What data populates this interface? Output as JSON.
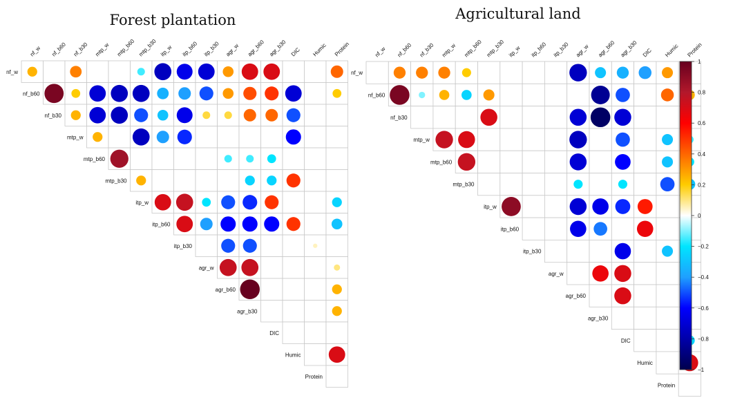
{
  "chart_data": [
    {
      "type": "heatmap",
      "title": "Forest plantation",
      "variables": [
        "nf_w",
        "nf_b60",
        "nf_b30",
        "mtp_w",
        "mtp_b60",
        "mtp_b30",
        "itp_w",
        "itp_b60",
        "itp_b30",
        "agr_w",
        "agr_b60",
        "agr_b30",
        "DIC",
        "Humic",
        "Protein"
      ],
      "cells": [
        {
          "row": "nf_w",
          "col": "nf_w",
          "value": 0.25
        },
        {
          "row": "nf_w",
          "col": "nf_b30",
          "value": 0.35
        },
        {
          "row": "nf_w",
          "col": "mtp_b30",
          "value": -0.15
        },
        {
          "row": "nf_w",
          "col": "itp_w",
          "value": -0.75
        },
        {
          "row": "nf_w",
          "col": "itp_b60",
          "value": -0.65
        },
        {
          "row": "nf_w",
          "col": "itp_b30",
          "value": -0.7
        },
        {
          "row": "nf_w",
          "col": "agr_w",
          "value": 0.3
        },
        {
          "row": "nf_w",
          "col": "agr_b60",
          "value": 0.7
        },
        {
          "row": "nf_w",
          "col": "agr_b30",
          "value": 0.7
        },
        {
          "row": "nf_w",
          "col": "Protein",
          "value": 0.4
        },
        {
          "row": "nf_b60",
          "col": "nf_b60",
          "value": 0.95
        },
        {
          "row": "nf_b60",
          "col": "nf_b30",
          "value": 0.2
        },
        {
          "row": "nf_b60",
          "col": "mtp_w",
          "value": -0.7
        },
        {
          "row": "nf_b60",
          "col": "mtp_b60",
          "value": -0.75
        },
        {
          "row": "nf_b60",
          "col": "mtp_b30",
          "value": -0.75
        },
        {
          "row": "nf_b60",
          "col": "itp_w",
          "value": -0.35
        },
        {
          "row": "nf_b60",
          "col": "itp_b60",
          "value": -0.4
        },
        {
          "row": "nf_b60",
          "col": "itp_b30",
          "value": -0.5
        },
        {
          "row": "nf_b60",
          "col": "agr_w",
          "value": 0.3
        },
        {
          "row": "nf_b60",
          "col": "agr_b60",
          "value": 0.45
        },
        {
          "row": "nf_b60",
          "col": "agr_b30",
          "value": 0.5
        },
        {
          "row": "nf_b60",
          "col": "DIC",
          "value": -0.7
        },
        {
          "row": "nf_b60",
          "col": "Protein",
          "value": 0.2
        },
        {
          "row": "nf_b30",
          "col": "nf_b30",
          "value": 0.25
        },
        {
          "row": "nf_b30",
          "col": "mtp_w",
          "value": -0.7
        },
        {
          "row": "nf_b30",
          "col": "mtp_b60",
          "value": -0.75
        },
        {
          "row": "nf_b30",
          "col": "mtp_b30",
          "value": -0.5
        },
        {
          "row": "nf_b30",
          "col": "itp_w",
          "value": -0.3
        },
        {
          "row": "nf_b30",
          "col": "itp_b60",
          "value": -0.65
        },
        {
          "row": "nf_b30",
          "col": "itp_b30",
          "value": 0.15
        },
        {
          "row": "nf_b30",
          "col": "agr_w",
          "value": 0.15
        },
        {
          "row": "nf_b30",
          "col": "agr_b60",
          "value": 0.4
        },
        {
          "row": "nf_b30",
          "col": "agr_b30",
          "value": 0.4
        },
        {
          "row": "nf_b30",
          "col": "DIC",
          "value": -0.5
        },
        {
          "row": "mtp_w",
          "col": "mtp_w",
          "value": 0.25
        },
        {
          "row": "mtp_w",
          "col": "mtp_b30",
          "value": -0.75
        },
        {
          "row": "mtp_w",
          "col": "itp_w",
          "value": -0.4
        },
        {
          "row": "mtp_w",
          "col": "itp_b60",
          "value": -0.55
        },
        {
          "row": "mtp_w",
          "col": "DIC",
          "value": -0.6
        },
        {
          "row": "mtp_b60",
          "col": "mtp_b60",
          "value": 0.85
        },
        {
          "row": "mtp_b60",
          "col": "agr_w",
          "value": -0.15
        },
        {
          "row": "mtp_b60",
          "col": "agr_b60",
          "value": -0.15
        },
        {
          "row": "mtp_b60",
          "col": "agr_b30",
          "value": -0.2
        },
        {
          "row": "mtp_b30",
          "col": "mtp_b30",
          "value": 0.25
        },
        {
          "row": "mtp_b30",
          "col": "agr_b60",
          "value": -0.25
        },
        {
          "row": "mtp_b30",
          "col": "agr_b30",
          "value": -0.25
        },
        {
          "row": "mtp_b30",
          "col": "DIC",
          "value": 0.5
        },
        {
          "row": "itp_w",
          "col": "itp_w",
          "value": 0.7
        },
        {
          "row": "itp_w",
          "col": "itp_b60",
          "value": 0.75
        },
        {
          "row": "itp_w",
          "col": "itp_b30",
          "value": -0.2
        },
        {
          "row": "itp_w",
          "col": "agr_w",
          "value": -0.5
        },
        {
          "row": "itp_w",
          "col": "agr_b60",
          "value": -0.55
        },
        {
          "row": "itp_w",
          "col": "agr_b30",
          "value": 0.5
        },
        {
          "row": "itp_w",
          "col": "Protein",
          "value": -0.25
        },
        {
          "row": "itp_b60",
          "col": "itp_b60",
          "value": 0.7
        },
        {
          "row": "itp_b60",
          "col": "itp_b30",
          "value": -0.4
        },
        {
          "row": "itp_b60",
          "col": "agr_w",
          "value": -0.6
        },
        {
          "row": "itp_b60",
          "col": "agr_b60",
          "value": -0.6
        },
        {
          "row": "itp_b60",
          "col": "agr_b30",
          "value": -0.6
        },
        {
          "row": "itp_b60",
          "col": "DIC",
          "value": 0.5
        },
        {
          "row": "itp_b60",
          "col": "Protein",
          "value": -0.3
        },
        {
          "row": "itp_b30",
          "col": "agr_w",
          "value": -0.5
        },
        {
          "row": "itp_b30",
          "col": "agr_b60",
          "value": -0.5
        },
        {
          "row": "itp_b30",
          "col": "Humic",
          "value": 0.05
        },
        {
          "row": "agr_w",
          "col": "agr_w",
          "value": 0.75
        },
        {
          "row": "agr_w",
          "col": "agr_b60",
          "value": 0.75
        },
        {
          "row": "agr_w",
          "col": "Protein",
          "value": 0.1
        },
        {
          "row": "agr_b60",
          "col": "agr_b60",
          "value": 1.0
        },
        {
          "row": "agr_b60",
          "col": "Protein",
          "value": 0.25
        },
        {
          "row": "agr_b30",
          "col": "Protein",
          "value": 0.25
        },
        {
          "row": "Humic",
          "col": "Protein",
          "value": 0.7
        }
      ]
    },
    {
      "type": "heatmap",
      "title": "Agricultural land",
      "variables": [
        "nf_w",
        "nf_b60",
        "nf_b30",
        "mtp_w",
        "mtp_b60",
        "mtp_b30",
        "itp_w",
        "itp_b60",
        "itp_b30",
        "agr_w",
        "agr_b60",
        "agr_b30",
        "DIC",
        "Humic",
        "Protein"
      ],
      "cells": [
        {
          "row": "nf_w",
          "col": "nf_b60",
          "value": 0.35
        },
        {
          "row": "nf_w",
          "col": "nf_b30",
          "value": 0.35
        },
        {
          "row": "nf_w",
          "col": "mtp_w",
          "value": 0.35
        },
        {
          "row": "nf_w",
          "col": "mtp_b60",
          "value": 0.2
        },
        {
          "row": "nf_w",
          "col": "agr_w",
          "value": -0.75
        },
        {
          "row": "nf_w",
          "col": "agr_b60",
          "value": -0.3
        },
        {
          "row": "nf_w",
          "col": "agr_b30",
          "value": -0.35
        },
        {
          "row": "nf_w",
          "col": "DIC",
          "value": -0.4
        },
        {
          "row": "nf_w",
          "col": "Humic",
          "value": 0.3
        },
        {
          "row": "nf_b60",
          "col": "nf_b60",
          "value": 0.95
        },
        {
          "row": "nf_b60",
          "col": "nf_b30",
          "value": -0.1
        },
        {
          "row": "nf_b60",
          "col": "mtp_w",
          "value": 0.25
        },
        {
          "row": "nf_b60",
          "col": "mtp_b60",
          "value": -0.25
        },
        {
          "row": "nf_b60",
          "col": "mtp_b30",
          "value": 0.3
        },
        {
          "row": "nf_b60",
          "col": "agr_b60",
          "value": -0.85
        },
        {
          "row": "nf_b60",
          "col": "agr_b30",
          "value": -0.5
        },
        {
          "row": "nf_b60",
          "col": "Humic",
          "value": 0.4
        },
        {
          "row": "nf_b60",
          "col": "Protein",
          "value": 0.25
        },
        {
          "row": "nf_b30",
          "col": "mtp_b30",
          "value": 0.7
        },
        {
          "row": "nf_b30",
          "col": "agr_w",
          "value": -0.7
        },
        {
          "row": "nf_b30",
          "col": "agr_b60",
          "value": -0.95
        },
        {
          "row": "nf_b30",
          "col": "agr_b30",
          "value": -0.7
        },
        {
          "row": "mtp_w",
          "col": "mtp_w",
          "value": 0.75
        },
        {
          "row": "mtp_w",
          "col": "mtp_b60",
          "value": 0.7
        },
        {
          "row": "mtp_w",
          "col": "agr_w",
          "value": -0.75
        },
        {
          "row": "mtp_w",
          "col": "agr_b30",
          "value": -0.5
        },
        {
          "row": "mtp_w",
          "col": "Humic",
          "value": -0.3
        },
        {
          "row": "mtp_w",
          "col": "Protein",
          "value": -0.15
        },
        {
          "row": "mtp_b60",
          "col": "mtp_b60",
          "value": 0.75
        },
        {
          "row": "mtp_b60",
          "col": "agr_w",
          "value": -0.7
        },
        {
          "row": "mtp_b60",
          "col": "agr_b30",
          "value": -0.6
        },
        {
          "row": "mtp_b60",
          "col": "Humic",
          "value": -0.3
        },
        {
          "row": "mtp_b60",
          "col": "Protein",
          "value": -0.2
        },
        {
          "row": "mtp_b30",
          "col": "agr_w",
          "value": -0.2
        },
        {
          "row": "mtp_b30",
          "col": "agr_b30",
          "value": -0.2
        },
        {
          "row": "mtp_b30",
          "col": "Humic",
          "value": -0.5
        },
        {
          "row": "mtp_b30",
          "col": "Protein",
          "value": -0.3
        },
        {
          "row": "itp_w",
          "col": "itp_w",
          "value": 0.9
        },
        {
          "row": "itp_w",
          "col": "agr_w",
          "value": -0.7
        },
        {
          "row": "itp_w",
          "col": "agr_b60",
          "value": -0.65
        },
        {
          "row": "itp_w",
          "col": "agr_b30",
          "value": -0.55
        },
        {
          "row": "itp_w",
          "col": "DIC",
          "value": 0.55
        },
        {
          "row": "itp_b60",
          "col": "agr_w",
          "value": -0.65
        },
        {
          "row": "itp_b60",
          "col": "agr_b60",
          "value": -0.45
        },
        {
          "row": "itp_b60",
          "col": "DIC",
          "value": 0.65
        },
        {
          "row": "itp_b30",
          "col": "agr_b30",
          "value": -0.65
        },
        {
          "row": "itp_b30",
          "col": "Humic",
          "value": -0.3
        },
        {
          "row": "agr_w",
          "col": "agr_b60",
          "value": 0.65
        },
        {
          "row": "agr_w",
          "col": "agr_b30",
          "value": 0.7
        },
        {
          "row": "agr_b60",
          "col": "agr_b30",
          "value": 0.7
        },
        {
          "row": "DIC",
          "col": "Protein",
          "value": -0.25
        },
        {
          "row": "Humic",
          "col": "Protein",
          "value": 0.7
        }
      ]
    }
  ],
  "colorbar": {
    "ticks": [
      "1",
      "0.8",
      "0.6",
      "0.4",
      "0.2",
      "0",
      "−0.2",
      "−0.4",
      "−0.6",
      "−0.8",
      "−1"
    ],
    "min": -1,
    "max": 1,
    "colors": [
      "#67001f",
      "#b2182b",
      "#ff0000",
      "#ff6600",
      "#ffcc00",
      "#ffffff",
      "#00e5ff",
      "#1fa0ff",
      "#0000ff",
      "#0000aa",
      "#00004d"
    ]
  }
}
